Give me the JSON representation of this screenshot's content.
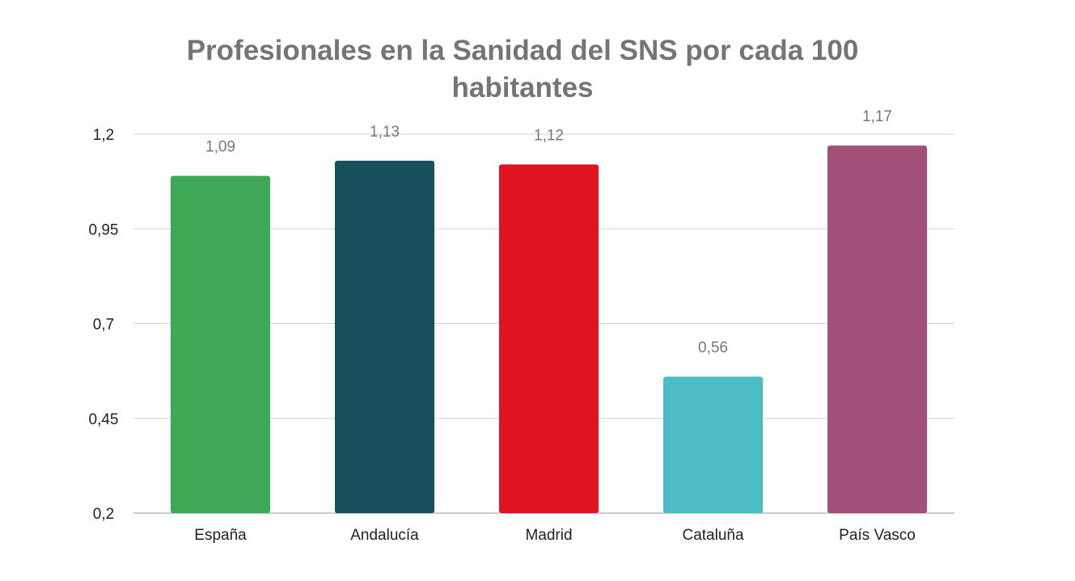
{
  "chart_data": {
    "type": "bar",
    "title": "Profesionales en la Sanidad del SNS por cada 100 habitantes",
    "title_lines": [
      "Profesionales en la Sanidad del SNS por cada 100",
      "habitantes"
    ],
    "xlabel": "",
    "ylabel": "",
    "categories": [
      "España",
      "Andalucía",
      "Madrid",
      "Cataluña",
      "País Vasco"
    ],
    "values": [
      1.09,
      1.13,
      1.12,
      0.56,
      1.17
    ],
    "data_labels": [
      "1,09",
      "1,13",
      "1,12",
      "0,56",
      "1,17"
    ],
    "colors": [
      "#3ea856",
      "#174f5c",
      "#e01421",
      "#4dbdc5",
      "#a44f78"
    ],
    "ylim": [
      0.2,
      1.2
    ],
    "yticks": [
      0.2,
      0.45,
      0.7,
      0.95,
      1.2
    ],
    "ytick_labels": [
      "0,2",
      "0,45",
      "0,7",
      "0,95",
      "1,2"
    ],
    "grid": true,
    "legend": "none"
  }
}
